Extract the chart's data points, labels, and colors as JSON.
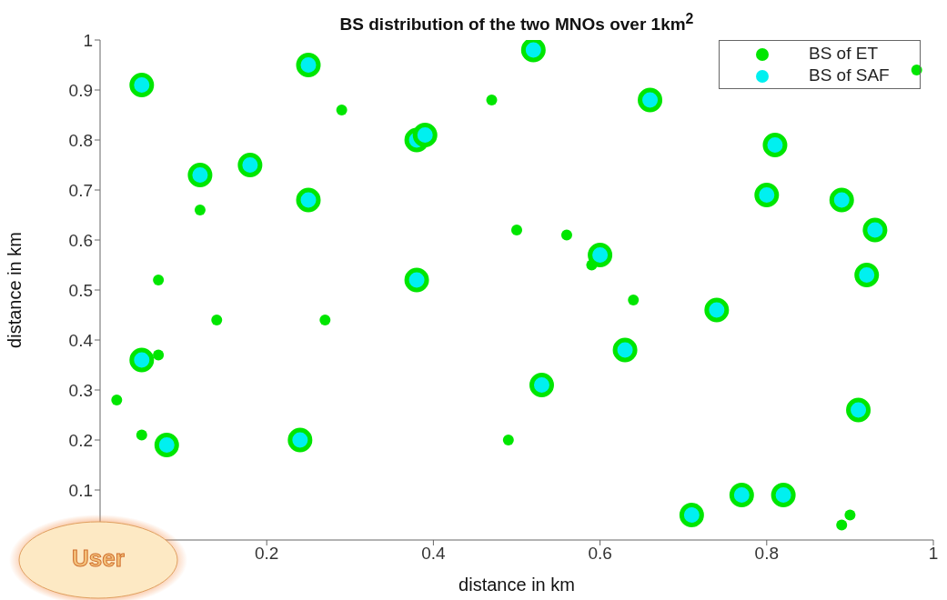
{
  "chart_data": {
    "type": "scatter",
    "title": "BS distribution of the two MNOs over 1km$^{2}$",
    "xlabel": "distance in km",
    "ylabel": "distance in km",
    "annotations": [
      "User"
    ],
    "series": [
      {
        "name": "BS of ET",
        "color": "#00e600",
        "x": [
          0.29,
          0.12,
          0.07,
          0.47,
          0.98,
          0.5,
          0.56,
          0.59,
          0.14,
          0.27,
          0.07,
          0.02,
          0.05,
          0.64,
          0.49,
          0.9,
          0.89
        ],
        "values": [
          0.86,
          0.66,
          0.52,
          0.88,
          0.94,
          0.62,
          0.61,
          0.55,
          0.44,
          0.44,
          0.37,
          0.28,
          0.21,
          0.48,
          0.2,
          0.05,
          0.03
        ]
      },
      {
        "name": "BS of SAF",
        "color": "#00f0f0",
        "x": [
          0.05,
          0.25,
          0.12,
          0.18,
          0.25,
          0.38,
          0.39,
          0.38,
          0.52,
          0.66,
          0.81,
          0.8,
          0.89,
          0.93,
          0.92,
          0.6,
          0.05,
          0.08,
          0.24,
          0.74,
          0.63,
          0.53,
          0.91,
          0.77,
          0.82,
          0.71
        ],
        "values": [
          0.91,
          0.95,
          0.73,
          0.75,
          0.68,
          0.8,
          0.81,
          0.52,
          0.98,
          0.88,
          0.79,
          0.69,
          0.68,
          0.62,
          0.53,
          0.57,
          0.36,
          0.19,
          0.2,
          0.46,
          0.38,
          0.31,
          0.26,
          0.09,
          0.09,
          0.05
        ]
      }
    ],
    "xlim": [
      0,
      1
    ],
    "xticks": [
      0.2,
      0.4,
      0.6,
      0.8,
      1
    ],
    "ylim": [
      0,
      1
    ],
    "yticks": [
      0.1,
      0.2,
      0.3,
      0.4,
      0.5,
      0.6,
      0.7,
      0.8,
      0.9,
      1
    ],
    "grid": false,
    "legend": "top right",
    "marker": "circle"
  }
}
